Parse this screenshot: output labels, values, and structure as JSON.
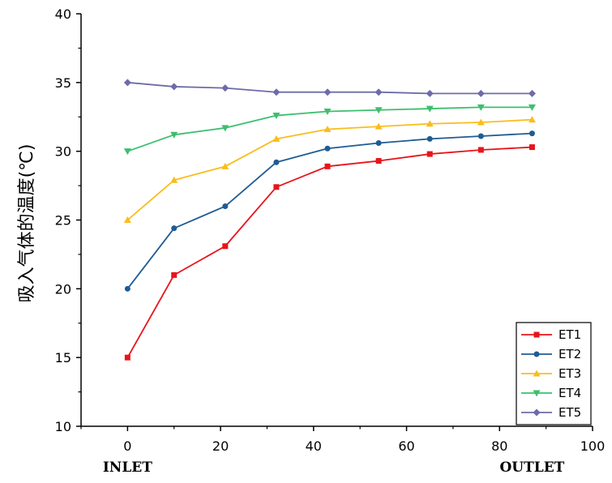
{
  "chart_data": {
    "type": "line",
    "title": "",
    "xlabel": "",
    "ylabel": "吸入气体的温度(℃)",
    "xlim": [
      -10,
      100
    ],
    "ylim": [
      10,
      40
    ],
    "x_ticks": [
      0,
      20,
      40,
      60,
      80,
      100
    ],
    "y_ticks": [
      10,
      15,
      20,
      25,
      30,
      35,
      40
    ],
    "x_end_labels": {
      "inlet": "INLET",
      "outlet": "OUTLET"
    },
    "grid": false,
    "legend_position": "bottom-right",
    "x": [
      0,
      10,
      21,
      32,
      43,
      54,
      65,
      76,
      87
    ],
    "series": [
      {
        "name": "ET1",
        "color": "#e8141b",
        "marker": "square",
        "values": [
          15.0,
          21.0,
          23.1,
          27.4,
          28.9,
          29.3,
          29.8,
          30.1,
          30.3
        ]
      },
      {
        "name": "ET2",
        "color": "#1f5b94",
        "marker": "circle",
        "values": [
          20.0,
          24.4,
          26.0,
          29.2,
          30.2,
          30.6,
          30.9,
          31.1,
          31.3
        ]
      },
      {
        "name": "ET3",
        "color": "#f9bd1c",
        "marker": "triangle-up",
        "values": [
          25.0,
          27.9,
          28.9,
          30.9,
          31.6,
          31.8,
          32.0,
          32.1,
          32.3
        ]
      },
      {
        "name": "ET4",
        "color": "#3cbf6d",
        "marker": "triangle-down",
        "values": [
          30.0,
          31.2,
          31.7,
          32.6,
          32.9,
          33.0,
          33.1,
          33.2,
          33.2
        ]
      },
      {
        "name": "ET5",
        "color": "#6e6ba8",
        "marker": "diamond",
        "values": [
          35.0,
          34.7,
          34.6,
          34.3,
          34.3,
          34.3,
          34.2,
          34.2,
          34.2
        ]
      }
    ]
  }
}
